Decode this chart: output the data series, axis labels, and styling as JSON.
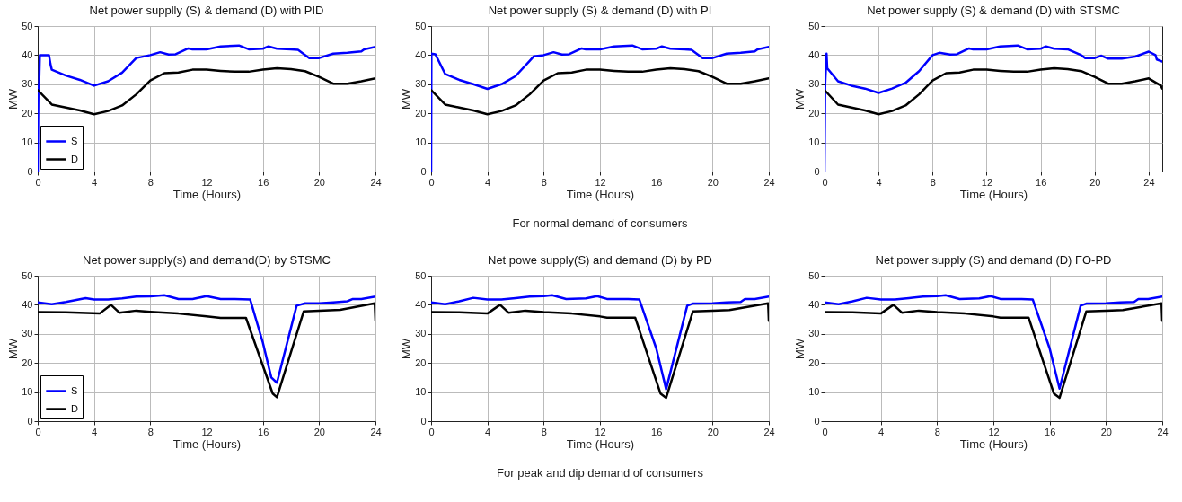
{
  "chart_data": [
    {
      "type": "line",
      "title": "Net power supplly (S) & demand (D)  with PID",
      "xlabel": "Time (Hours)",
      "ylabel": "MW",
      "xlim": [
        0,
        24
      ],
      "xticks": [
        0,
        4,
        8,
        12,
        16,
        20,
        24
      ],
      "ylim": [
        0,
        50
      ],
      "yticks": [
        0,
        10,
        20,
        30,
        40,
        50
      ],
      "grid": true,
      "legend": "bottom left",
      "series": [
        {
          "name": "S",
          "color": "#0000ff",
          "x": [
            0,
            0.05,
            0.1,
            0.15,
            0.8,
            0.9,
            1,
            2,
            3,
            4,
            5,
            6,
            7,
            8,
            8.7,
            9.3,
            9.8,
            10.7,
            11,
            12,
            13,
            14.3,
            15,
            16,
            16.4,
            17,
            18,
            18.5,
            19.3,
            20,
            21,
            22,
            23,
            23.2,
            24
          ],
          "values": [
            0,
            30,
            30,
            40,
            40,
            37,
            35,
            33,
            31.5,
            29.5,
            31,
            34,
            39,
            40,
            41,
            40.2,
            40.3,
            42.3,
            42,
            42,
            43,
            43.3,
            42,
            42.2,
            43,
            42.2,
            42,
            41.8,
            39,
            39,
            40.5,
            40.8,
            41.3,
            42,
            42.8
          ]
        },
        {
          "name": "D",
          "color": "#000000",
          "x": [
            0,
            1,
            2,
            3,
            4,
            5,
            6,
            7,
            8,
            9,
            10,
            11,
            12,
            13,
            14,
            15,
            16,
            17,
            18,
            19,
            20,
            21,
            22,
            23,
            24
          ],
          "values": [
            28,
            23,
            22,
            21,
            19.7,
            20.8,
            22.7,
            26.5,
            31.3,
            33.8,
            34,
            35,
            35,
            34.6,
            34.3,
            34.3,
            35,
            35.5,
            35.2,
            34.5,
            32.5,
            30.2,
            30.2,
            31,
            32
          ]
        }
      ]
    },
    {
      "type": "line",
      "title": "Net power supply (S) & demand (D) with PI",
      "xlabel": "Time (Hours)",
      "ylabel": "MW",
      "xlim": [
        0,
        24
      ],
      "xticks": [
        0,
        4,
        8,
        12,
        16,
        20,
        24
      ],
      "ylim": [
        0,
        50
      ],
      "yticks": [
        0,
        10,
        20,
        30,
        40,
        50
      ],
      "grid": true,
      "annotations": [
        "For normal demand of consumers"
      ],
      "series": [
        {
          "color": "#0000ff",
          "x": [
            0,
            0.02,
            0.3,
            1,
            2,
            3,
            4,
            5,
            6,
            7,
            7.3,
            8,
            8.7,
            9.3,
            9.8,
            10.7,
            11,
            12,
            13,
            14.3,
            15,
            16,
            16.4,
            17,
            18,
            18.5,
            19.3,
            20,
            21,
            22,
            23,
            23.2,
            24
          ],
          "values": [
            0,
            40.5,
            40.3,
            33.5,
            31.5,
            30,
            28.4,
            30,
            32.8,
            38,
            39.6,
            40,
            41,
            40.2,
            40.3,
            42.3,
            42,
            42,
            43,
            43.3,
            42,
            42.2,
            43,
            42.2,
            42,
            41.8,
            39,
            39,
            40.5,
            40.8,
            41.3,
            42,
            42.8
          ]
        },
        {
          "color": "#000000",
          "x": [
            0,
            1,
            2,
            3,
            4,
            5,
            6,
            7,
            8,
            9,
            10,
            11,
            12,
            13,
            14,
            15,
            16,
            17,
            18,
            19,
            20,
            21,
            22,
            23,
            24
          ],
          "values": [
            28,
            23,
            22,
            21,
            19.7,
            20.8,
            22.7,
            26.5,
            31.3,
            33.8,
            34,
            35,
            35,
            34.6,
            34.3,
            34.3,
            35,
            35.5,
            35.2,
            34.5,
            32.5,
            30.2,
            30.2,
            31,
            32
          ]
        }
      ]
    },
    {
      "type": "line",
      "title": "Net power supply (S) &  demand (D) with STSMC",
      "xlabel": "Time (Hours)",
      "ylabel": "MW",
      "xlim": [
        0,
        25
      ],
      "xticks": [
        0,
        4,
        8,
        12,
        16,
        20,
        24
      ],
      "ylim": [
        0,
        50
      ],
      "yticks": [
        0,
        10,
        20,
        30,
        40,
        50
      ],
      "grid": true,
      "series": [
        {
          "color": "#0000ff",
          "x": [
            0,
            0.05,
            0.15,
            0.2,
            1,
            2,
            3,
            4,
            5,
            6,
            7,
            8,
            8.5,
            9.3,
            9.8,
            10.7,
            11,
            12,
            13,
            14.3,
            15,
            16,
            16.4,
            17,
            18,
            19,
            19.3,
            20,
            20.5,
            21,
            22,
            23,
            24,
            24.5,
            24.6,
            25
          ],
          "values": [
            0,
            30,
            40.5,
            35.5,
            31,
            29.5,
            28.5,
            27,
            28.5,
            30.5,
            34.5,
            40,
            40.8,
            40.2,
            40.3,
            42.3,
            42,
            42,
            43,
            43.3,
            42,
            42.2,
            43,
            42.2,
            42,
            40,
            39,
            39,
            39.8,
            38.8,
            38.8,
            39.5,
            41.2,
            40,
            38.5,
            37.8
          ]
        },
        {
          "color": "#000000",
          "x": [
            0,
            1,
            2,
            3,
            4,
            5,
            6,
            7,
            8,
            9,
            10,
            11,
            12,
            13,
            14,
            15,
            16,
            17,
            18,
            19,
            20,
            21,
            22,
            23,
            24,
            24.9,
            25
          ],
          "values": [
            28,
            23,
            22,
            21,
            19.7,
            20.8,
            22.7,
            26.5,
            31.3,
            33.8,
            34,
            35,
            35,
            34.6,
            34.3,
            34.3,
            35,
            35.5,
            35.2,
            34.5,
            32.5,
            30.2,
            30.2,
            31,
            32,
            29.5,
            28.5
          ]
        }
      ]
    },
    {
      "type": "line",
      "title": "Net power supply(s)  and  demand(D) by STSMC",
      "xlabel": "Time (Hours)",
      "ylabel": "MW",
      "xlim": [
        0,
        24
      ],
      "xticks": [
        0,
        4,
        8,
        12,
        16,
        20,
        24
      ],
      "ylim": [
        0,
        50
      ],
      "yticks": [
        0,
        10,
        20,
        30,
        40,
        50
      ],
      "grid": true,
      "legend": "bottom left",
      "series": [
        {
          "name": "S",
          "color": "#0000ff",
          "x": [
            0,
            1,
            2,
            3.4,
            4,
            5,
            6,
            7,
            8,
            9,
            10,
            11,
            12,
            13,
            14,
            15.1,
            16,
            16.6,
            17,
            18.4,
            19,
            20,
            21,
            22,
            22.4,
            23,
            24
          ],
          "values": [
            40.8,
            40.2,
            41,
            42.3,
            41.8,
            41.8,
            42.2,
            42.8,
            42.9,
            43.3,
            42,
            42,
            43,
            42,
            42,
            41.8,
            27,
            15,
            13.2,
            39.7,
            40.5,
            40.5,
            40.8,
            41.2,
            42,
            42,
            42.8
          ]
        },
        {
          "name": "D",
          "color": "#000000",
          "x": [
            0,
            2,
            4.4,
            5.2,
            5.8,
            7,
            8,
            10,
            12,
            13,
            14.8,
            16.7,
            17,
            18.9,
            20,
            21.5,
            23.95,
            24
          ],
          "values": [
            37.5,
            37.4,
            37,
            40,
            37.3,
            38,
            37.6,
            37,
            36,
            35.5,
            35.5,
            9.5,
            8.2,
            37.7,
            38,
            38.3,
            40.5,
            34.5
          ]
        }
      ]
    },
    {
      "type": "line",
      "title": "Net powe supply(S) and demand (D) by PD",
      "xlabel": "Time (Hours)",
      "ylabel": "MW",
      "xlim": [
        0,
        24
      ],
      "xticks": [
        0,
        4,
        8,
        12,
        16,
        20,
        24
      ],
      "ylim": [
        0,
        50
      ],
      "yticks": [
        0,
        10,
        20,
        30,
        40,
        50
      ],
      "grid": true,
      "annotations": [
        "For peak and dip demand of consumers"
      ],
      "series": [
        {
          "color": "#0000ff",
          "x": [
            0,
            1,
            2,
            3,
            4,
            5,
            6,
            7,
            8,
            8.6,
            9.6,
            11,
            11.8,
            12.5,
            14,
            14.8,
            16,
            16.7,
            18.2,
            18.6,
            20,
            21,
            22,
            22.3,
            23,
            24
          ],
          "values": [
            40.8,
            40.2,
            41.2,
            42.4,
            41.8,
            41.8,
            42.3,
            42.8,
            43,
            43.3,
            42,
            42.2,
            43,
            42,
            42,
            41.8,
            25,
            11,
            39.7,
            40.4,
            40.5,
            40.8,
            41,
            42,
            42,
            42.8
          ]
        },
        {
          "color": "#000000",
          "x": [
            0,
            2,
            4,
            4.9,
            5.5,
            6.7,
            8,
            10,
            12,
            12.5,
            14.5,
            16.3,
            16.7,
            18.6,
            20,
            21.2,
            23.95,
            24
          ],
          "values": [
            37.5,
            37.4,
            37,
            40,
            37.3,
            38,
            37.5,
            37,
            36,
            35.6,
            35.6,
            9.5,
            8,
            37.7,
            38,
            38.2,
            40.5,
            34.5
          ]
        }
      ]
    },
    {
      "type": "line",
      "title": "Net power supply (S) and demand (D) FO-PD",
      "xlabel": "Time (Hours)",
      "ylabel": "MW",
      "xlim": [
        0,
        24
      ],
      "xticks": [
        0,
        4,
        8,
        12,
        16,
        20,
        24
      ],
      "ylim": [
        0,
        50
      ],
      "yticks": [
        0,
        10,
        20,
        30,
        40,
        50
      ],
      "grid": true,
      "series": [
        {
          "color": "#0000ff",
          "x": [
            0,
            1,
            2,
            3,
            4,
            5,
            6,
            7,
            8,
            8.6,
            9.6,
            11,
            11.8,
            12.5,
            14,
            14.8,
            16,
            16.7,
            18.2,
            18.6,
            20,
            21,
            22,
            22.3,
            23,
            24
          ],
          "values": [
            40.8,
            40.2,
            41.2,
            42.4,
            41.8,
            41.8,
            42.3,
            42.8,
            43,
            43.3,
            42,
            42.2,
            43,
            42,
            42,
            41.8,
            25,
            11.2,
            39.7,
            40.4,
            40.5,
            40.8,
            41,
            42,
            42,
            42.8
          ]
        },
        {
          "color": "#000000",
          "x": [
            0,
            2,
            4,
            4.9,
            5.5,
            6.7,
            8,
            10,
            12,
            12.5,
            14.5,
            16.3,
            16.7,
            18.6,
            20,
            21.2,
            23.95,
            24
          ],
          "values": [
            37.5,
            37.4,
            37,
            40,
            37.3,
            38,
            37.5,
            37,
            36,
            35.6,
            35.6,
            9.5,
            8,
            37.7,
            38,
            38.2,
            40.5,
            34.5
          ]
        }
      ]
    }
  ]
}
